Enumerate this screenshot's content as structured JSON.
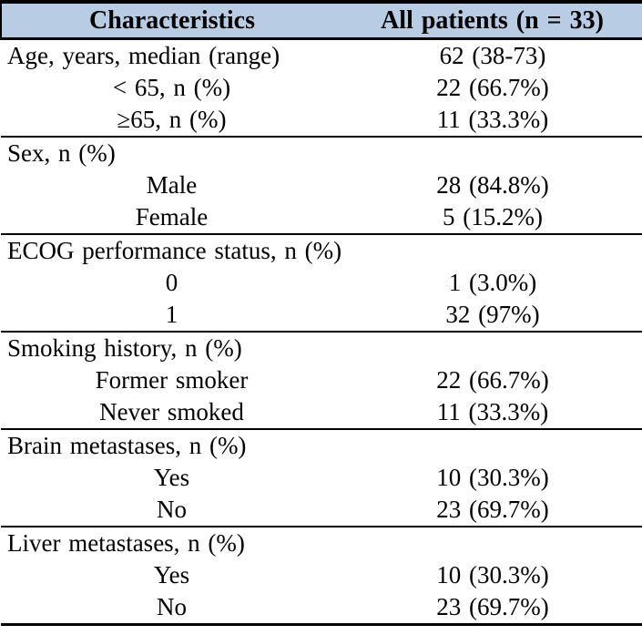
{
  "meta": {
    "header_bg": "#b8cce4",
    "border_color": "#000000",
    "text_color": "#000000"
  },
  "table": {
    "columns": [
      {
        "label": "Characteristics"
      },
      {
        "label": "All patients (n = 33)"
      }
    ],
    "sections": [
      {
        "header": "Age, years, median (range)",
        "value": "62 (38-73)",
        "rows": [
          {
            "label": "< 65, n (%)",
            "value": "22 (66.7%)"
          },
          {
            "label": "≥65, n (%)",
            "value": "11 (33.3%)"
          }
        ]
      },
      {
        "header": "Sex, n (%)",
        "value": "",
        "rows": [
          {
            "label": "Male",
            "value": "28 (84.8%)"
          },
          {
            "label": "Female",
            "value": "5 (15.2%)"
          }
        ]
      },
      {
        "header": "ECOG performance status, n (%)",
        "value": "",
        "rows": [
          {
            "label": "0",
            "value": "1 (3.0%)"
          },
          {
            "label": "1",
            "value": "32 (97%)"
          }
        ]
      },
      {
        "header": "Smoking history, n (%)",
        "value": "",
        "rows": [
          {
            "label": "Former smoker",
            "value": "22 (66.7%)"
          },
          {
            "label": "Never smoked",
            "value": "11 (33.3%)"
          }
        ]
      },
      {
        "header": "Brain metastases, n (%)",
        "value": "",
        "rows": [
          {
            "label": "Yes",
            "value": "10 (30.3%)"
          },
          {
            "label": "No",
            "value": "23 (69.7%)"
          }
        ]
      },
      {
        "header": "Liver metastases, n (%)",
        "value": "",
        "rows": [
          {
            "label": "Yes",
            "value": "10 (30.3%)"
          },
          {
            "label": "No",
            "value": "23 (69.7%)"
          }
        ]
      }
    ]
  }
}
